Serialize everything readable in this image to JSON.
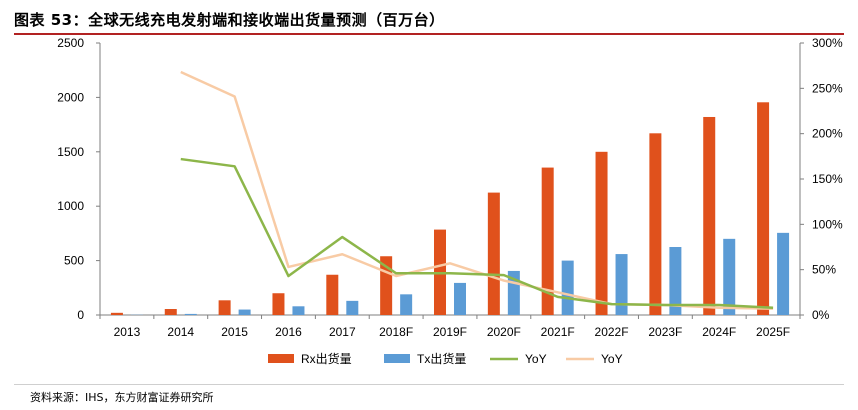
{
  "title": "图表 53：全球无线充电发射端和接收端出货量预测（百万台）",
  "source": "资料来源：IHS，东方财富证券研究所",
  "colors": {
    "rx": "#e0511c",
    "tx": "#5b9bd5",
    "yoy_green": "#8db64a",
    "yoy_peach": "#f8cba5",
    "title_rule": "#b22222"
  },
  "chart_data": {
    "type": "bar",
    "categories": [
      "2013",
      "2014",
      "2015",
      "2016",
      "2017",
      "2018F",
      "2019F",
      "2020F",
      "2021F",
      "2022F",
      "2023F",
      "2024F",
      "2025F"
    ],
    "y_left": {
      "min": 0,
      "max": 2500,
      "ticks": [
        "0",
        "500",
        "1000",
        "1500",
        "2000",
        "2500"
      ]
    },
    "y_right": {
      "min": 0,
      "max": 300,
      "ticks": [
        "0%",
        "50%",
        "100%",
        "150%",
        "200%",
        "250%",
        "300%"
      ]
    },
    "grid": false,
    "legend_position": "bottom",
    "series": [
      {
        "name": "Rx出货量",
        "kind": "bar",
        "axis": "left",
        "values": [
          20,
          55,
          135,
          200,
          370,
          540,
          785,
          1125,
          1355,
          1500,
          1670,
          1820,
          1955
        ]
      },
      {
        "name": "Tx出货量",
        "kind": "bar",
        "axis": "left",
        "values": [
          2,
          10,
          50,
          80,
          130,
          190,
          295,
          405,
          500,
          560,
          625,
          700,
          755
        ]
      },
      {
        "name": "YoY",
        "kind": "line",
        "axis": "right",
        "values": [
          null,
          172,
          164,
          43,
          86,
          46,
          46,
          44,
          20,
          12,
          11,
          11,
          8
        ]
      },
      {
        "name": "YoY",
        "kind": "line",
        "axis": "right",
        "values": [
          null,
          268,
          241,
          53,
          67,
          43,
          57,
          38,
          25,
          12,
          11,
          8,
          7
        ]
      }
    ]
  }
}
